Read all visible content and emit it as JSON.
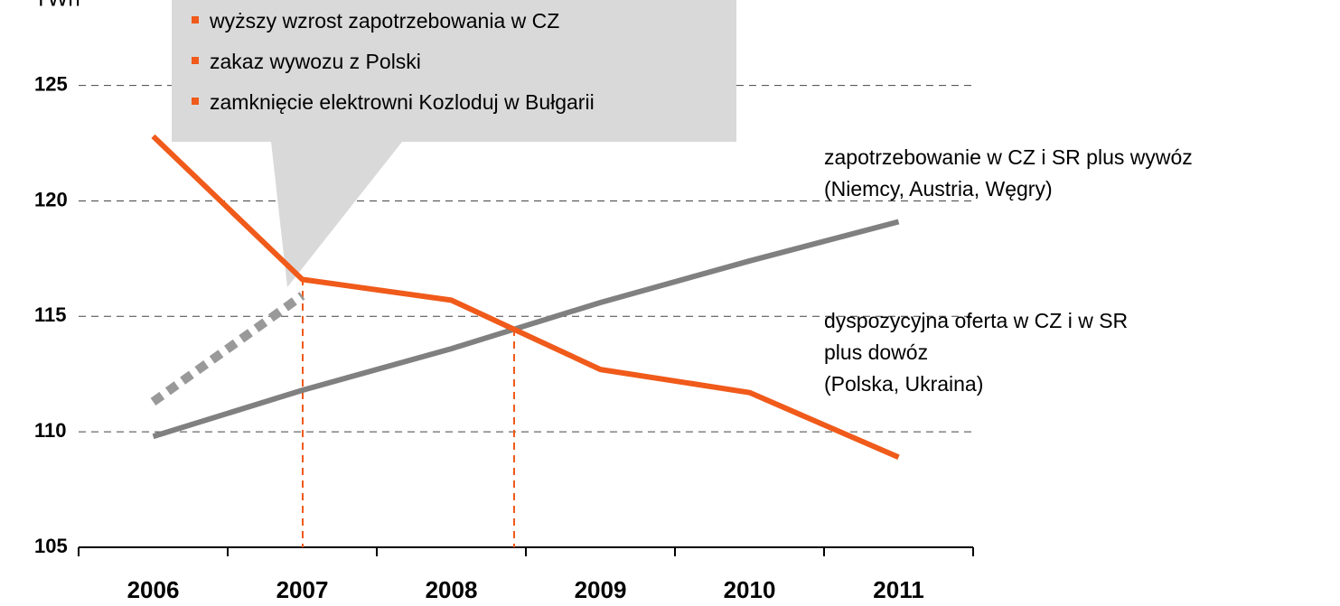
{
  "chart_data": {
    "type": "line",
    "y_label": "TWh",
    "categories": [
      "2006",
      "2007",
      "2008",
      "2009",
      "2010",
      "2011"
    ],
    "series": [
      {
        "name": "zapotrzebowanie w CZ i SR plus wywóz\n(Niemcy, Austria, Węgry)",
        "color": "#808080",
        "values": [
          109.8,
          111.8,
          113.6,
          115.6,
          117.4,
          119.1
        ]
      },
      {
        "name": "dyspozycyjna oferta w CZ i w SR\nplus dowóz\n(Polska, Ukraina)",
        "color": "#f05a1a",
        "values": [
          122.8,
          116.6,
          115.7,
          112.7,
          111.7,
          108.9
        ]
      },
      {
        "color": "#999999",
        "dashed": true,
        "values": [
          111.3,
          115.9,
          null,
          null,
          null,
          null
        ]
      }
    ],
    "ylim": [
      105,
      128.7
    ],
    "yticks": [
      105,
      110,
      115,
      120,
      125
    ],
    "grid": true,
    "callout": [
      "wyższy wzrost zapotrzebowania w CZ",
      "zakaz wywozu z Polski",
      "zamknięcie elektrowni Kozloduj w Bułgarii"
    ]
  }
}
